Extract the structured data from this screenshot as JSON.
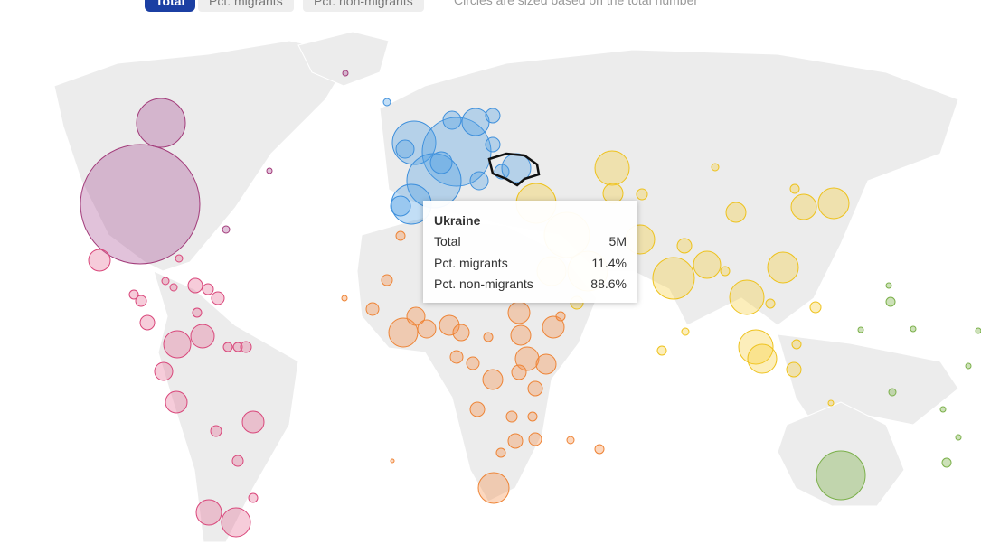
{
  "controls": {
    "buttons": [
      "Total",
      "Pct. migrants",
      "Pct. non-migrants"
    ],
    "note": "Circles are sized based on the total number"
  },
  "tooltip": {
    "title": "Ukraine",
    "rows": [
      [
        "Total",
        "5M"
      ],
      [
        "Pct. migrants",
        "11.4%"
      ],
      [
        "Pct. non-migrants",
        "88.6%"
      ]
    ]
  }
}
